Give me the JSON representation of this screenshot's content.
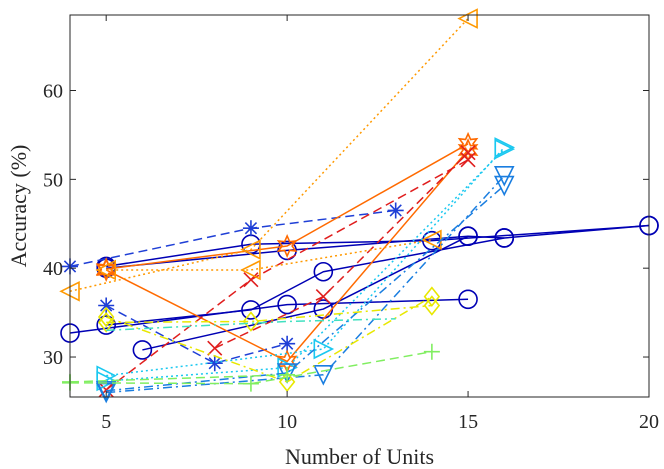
{
  "chart_data": {
    "type": "line",
    "title": "",
    "xlabel": "Number of Units",
    "ylabel": "Accuracy (%)",
    "xlim": [
      4,
      20
    ],
    "ylim": [
      25.5,
      68.5
    ],
    "xticks": [
      5,
      10,
      15,
      20
    ],
    "yticks": [
      30,
      40,
      50,
      60
    ],
    "xtick_labels": [
      "5",
      "10",
      "15",
      "20"
    ],
    "ytick_labels": [
      "30",
      "40",
      "50",
      "60"
    ],
    "grid": false,
    "legend": "none",
    "series": [
      {
        "name": "s1",
        "color": "#0000b4",
        "dash": "solid",
        "marker": "circle",
        "x": [
          5,
          9,
          14,
          20
        ],
        "y": [
          40.2,
          42.7,
          43.1,
          44.8
        ]
      },
      {
        "name": "s2",
        "color": "#0000b4",
        "dash": "solid",
        "marker": "circle",
        "x": [
          5,
          10,
          15,
          16
        ],
        "y": [
          40.0,
          42.0,
          43.6,
          43.4
        ]
      },
      {
        "name": "s3",
        "color": "#0000b4",
        "dash": "solid",
        "marker": "circle",
        "x": [
          5,
          9,
          11,
          16,
          20
        ],
        "y": [
          33.6,
          35.3,
          39.6,
          43.4,
          44.8
        ]
      },
      {
        "name": "s4",
        "color": "#0000b4",
        "dash": "solid",
        "marker": "circle",
        "x": [
          4,
          10,
          15
        ],
        "y": [
          32.7,
          35.9,
          36.5
        ]
      },
      {
        "name": "s5",
        "color": "#0000b4",
        "dash": "solid",
        "marker": "circle",
        "x": [
          6,
          11,
          15
        ],
        "y": [
          30.8,
          35.4,
          43.6
        ]
      },
      {
        "name": "s6",
        "color": "#1f3fd6",
        "dash": "dashed",
        "marker": "asterisk",
        "x": [
          4,
          9,
          13
        ],
        "y": [
          40.2,
          44.5,
          46.5
        ]
      },
      {
        "name": "s7",
        "color": "#1f3fd6",
        "dash": "dashed",
        "marker": "asterisk",
        "x": [
          5,
          8,
          10
        ],
        "y": [
          35.8,
          29.3,
          31.5
        ]
      },
      {
        "name": "s8",
        "color": "#ff6a00",
        "dash": "solid",
        "marker": "hexagram",
        "x": [
          5,
          10,
          15
        ],
        "y": [
          39.9,
          42.5,
          54.0
        ]
      },
      {
        "name": "s9",
        "color": "#ff6a00",
        "dash": "solid",
        "marker": "hexagram",
        "x": [
          5,
          10,
          15
        ],
        "y": [
          39.8,
          29.5,
          53.3
        ]
      },
      {
        "name": "s10",
        "color": "#e01e1e",
        "dash": "dashed",
        "marker": "x",
        "x": [
          5,
          9,
          15
        ],
        "y": [
          26.3,
          38.7,
          52.2
        ]
      },
      {
        "name": "s11",
        "color": "#e01e1e",
        "dash": "dashed",
        "marker": "x",
        "x": [
          8,
          11,
          15
        ],
        "y": [
          31.0,
          36.8,
          53.0
        ]
      },
      {
        "name": "s12",
        "color": "#ff9900",
        "dash": "dotted",
        "marker": "triangle-left",
        "x": [
          4,
          9,
          15
        ],
        "y": [
          37.4,
          42.1,
          68.1
        ]
      },
      {
        "name": "s13",
        "color": "#ff9900",
        "dash": "dotted",
        "marker": "triangle-left",
        "x": [
          5,
          9,
          14
        ],
        "y": [
          39.8,
          39.8,
          43.2
        ]
      },
      {
        "name": "s14",
        "color": "#1ac8f0",
        "dash": "dotted",
        "marker": "triangle-right",
        "x": [
          5,
          11,
          16
        ],
        "y": [
          27.9,
          30.9,
          53.6
        ]
      },
      {
        "name": "s15",
        "color": "#1ac8f0",
        "dash": "dotted",
        "marker": "triangle-right",
        "x": [
          5,
          10,
          16
        ],
        "y": [
          27.3,
          28.8,
          53.4
        ]
      },
      {
        "name": "s16",
        "color": "#1a7ee0",
        "dash": "dashdot",
        "marker": "triangle-down",
        "x": [
          5,
          11,
          16
        ],
        "y": [
          26.0,
          28.0,
          50.4
        ]
      },
      {
        "name": "s17",
        "color": "#1a7ee0",
        "dash": "dashdot",
        "marker": "triangle-down",
        "x": [
          5,
          10,
          16
        ],
        "y": [
          26.2,
          28.2,
          49.3
        ]
      },
      {
        "name": "s18",
        "color": "#e8e800",
        "dash": "dashdot",
        "marker": "diamond",
        "x": [
          5,
          10,
          14
        ],
        "y": [
          34.5,
          27.2,
          36.8
        ]
      },
      {
        "name": "s19",
        "color": "#e8e800",
        "dash": "dashdot",
        "marker": "diamond",
        "x": [
          5,
          9,
          14
        ],
        "y": [
          33.9,
          34.0,
          35.8
        ]
      },
      {
        "name": "s20",
        "color": "#80ee60",
        "dash": "dashed",
        "marker": "plus",
        "x": [
          4,
          9,
          14
        ],
        "y": [
          27.1,
          27.0,
          30.6
        ]
      },
      {
        "name": "s21",
        "color": "#80ee60",
        "dash": "dashed",
        "marker": "plus",
        "x": [
          4,
          10
        ],
        "y": [
          27.2,
          28.0
        ]
      },
      {
        "name": "s22",
        "color": "#40e0c0",
        "dash": "dashdot",
        "marker": "none",
        "x": [
          5,
          10,
          13
        ],
        "y": [
          33.0,
          34.0,
          34.3
        ]
      }
    ]
  }
}
